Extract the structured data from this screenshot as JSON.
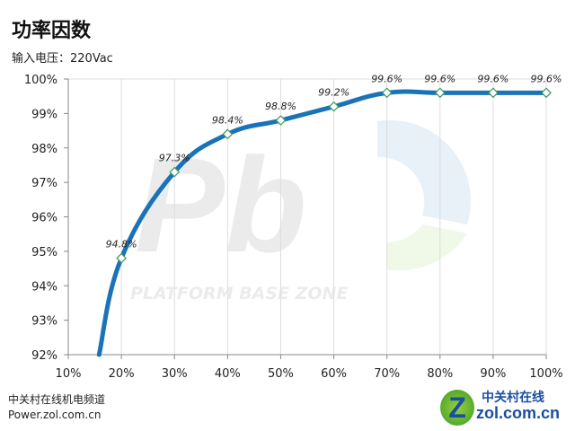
{
  "title": "功率因数",
  "subtitle": "输入电压：220Vac",
  "footer": {
    "line1": "中关村在线机电频道",
    "line2": "Power.zol.com.cn"
  },
  "logo": {
    "mark": "Z",
    "text1": "中关村在线",
    "text2": "zol.com.cn"
  },
  "watermark": "PLATFORM BASE ZONE",
  "chart_data": {
    "type": "line",
    "xlim": [
      10,
      100
    ],
    "ylim": [
      92,
      100
    ],
    "x_ticks": [
      "10%",
      "20%",
      "30%",
      "40%",
      "50%",
      "60%",
      "70%",
      "80%",
      "90%",
      "100%"
    ],
    "y_ticks": [
      "92%",
      "93%",
      "94%",
      "95%",
      "96%",
      "97%",
      "98%",
      "99%",
      "100%"
    ],
    "grid": "vertical",
    "line_start": [
      15.8,
      92
    ],
    "x": [
      20,
      30,
      40,
      50,
      60,
      70,
      80,
      90,
      100
    ],
    "y": [
      94.8,
      97.3,
      98.4,
      98.8,
      99.2,
      99.6,
      99.6,
      99.6,
      99.6
    ],
    "labels": [
      "94.8%",
      "97.3%",
      "98.4%",
      "98.8%",
      "99.2%",
      "99.6%",
      "99.6%",
      "99.6%",
      "99.6%"
    ],
    "line_color": "#1a73b8",
    "marker_color": "#ffffff",
    "marker_edge": "#3a9a5a"
  }
}
